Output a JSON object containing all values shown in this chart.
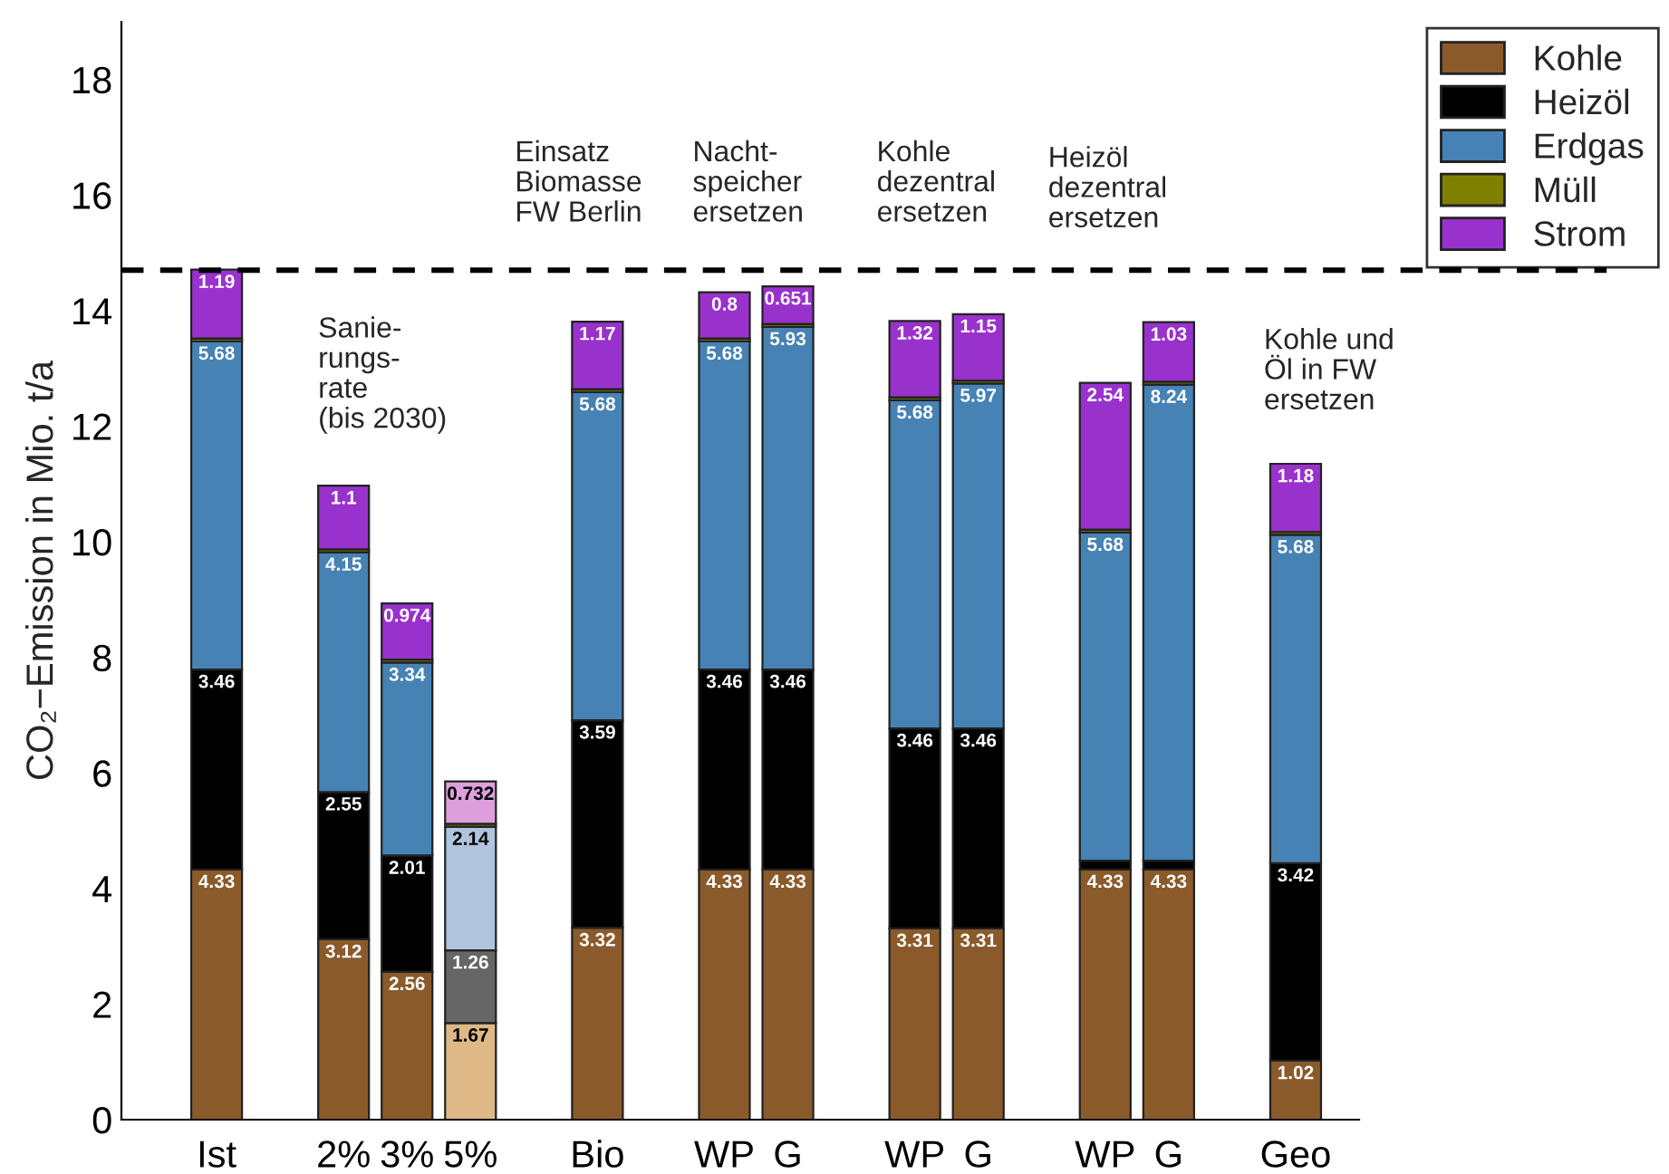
{
  "chart_data": {
    "type": "bar",
    "stacked": true,
    "ylabel": "CO₂−Emission in Mio. t/a",
    "categories": [
      "Ist",
      null,
      "2%",
      "3%",
      "5%",
      null,
      "Bio",
      null,
      "WP",
      "G",
      null,
      "WP",
      "G",
      null,
      "WP",
      "G",
      null,
      "Geo"
    ],
    "series": [
      {
        "name": "Kohle",
        "color": "#8b5a2b",
        "colors": [
          "#8b5a2b",
          null,
          "#8b5a2b",
          "#8b5a2b",
          "#deb887",
          null,
          "#8b5a2b",
          null,
          "#8b5a2b",
          "#8b5a2b",
          null,
          "#8b5a2b",
          "#8b5a2b",
          null,
          "#8b5a2b",
          "#8b5a2b",
          null,
          "#8b5a2b"
        ],
        "values": [
          4.33,
          null,
          3.12,
          2.56,
          1.67,
          null,
          3.32,
          null,
          4.33,
          4.33,
          null,
          3.31,
          3.31,
          null,
          4.33,
          4.33,
          null,
          1.02
        ],
        "value_labels": [
          "4.33",
          null,
          "3.12",
          "2.56",
          "1.67",
          null,
          "3.32",
          null,
          "4.33",
          "4.33",
          null,
          "3.31",
          "3.31",
          null,
          "4.33",
          "4.33",
          null,
          "1.02"
        ]
      },
      {
        "name": "Heizöl",
        "color": "#000000",
        "colors": [
          "#000000",
          null,
          "#000000",
          "#000000",
          "#666666",
          null,
          "#000000",
          null,
          "#000000",
          "#000000",
          null,
          "#000000",
          "#000000",
          null,
          "#000000",
          "#000000",
          null,
          "#000000"
        ],
        "values": [
          3.46,
          null,
          2.55,
          2.01,
          1.26,
          null,
          3.59,
          null,
          3.46,
          3.46,
          null,
          3.46,
          3.46,
          null,
          0.15,
          0.15,
          null,
          3.42
        ],
        "value_labels": [
          "3.46",
          null,
          "2.55",
          "2.01",
          "1.26",
          null,
          "3.59",
          null,
          "3.46",
          "3.46",
          null,
          "3.46",
          "3.46",
          null,
          null,
          null,
          null,
          "3.42"
        ]
      },
      {
        "name": "Erdgas",
        "color": "#4682b4",
        "colors": [
          "#4682b4",
          null,
          "#4682b4",
          "#4682b4",
          "#b0c4de",
          null,
          "#4682b4",
          null,
          "#4682b4",
          "#4682b4",
          null,
          "#4682b4",
          "#4682b4",
          null,
          "#4682b4",
          "#4682b4",
          null,
          "#4682b4"
        ],
        "values": [
          5.68,
          null,
          4.15,
          3.34,
          2.14,
          null,
          5.68,
          null,
          5.68,
          5.93,
          null,
          5.68,
          5.97,
          null,
          5.68,
          8.24,
          null,
          5.68
        ],
        "value_labels": [
          "5.68",
          null,
          "4.15",
          "3.34",
          "2.14",
          null,
          "5.68",
          null,
          "5.68",
          "5.93",
          null,
          "5.68",
          "5.97",
          null,
          "5.68",
          "8.24",
          null,
          "5.68"
        ]
      },
      {
        "name": "Müll",
        "color": "#808000",
        "values": [
          0.05,
          null,
          0.05,
          0.05,
          0.05,
          null,
          0.05,
          null,
          0.05,
          0.05,
          null,
          0.05,
          0.05,
          null,
          0.05,
          0.05,
          null,
          0.05
        ]
      },
      {
        "name": "Strom",
        "color": "#9932cc",
        "colors": [
          "#9932cc",
          null,
          "#9932cc",
          "#9932cc",
          "#dda0dd",
          null,
          "#9932cc",
          null,
          "#9932cc",
          "#9932cc",
          null,
          "#9932cc",
          "#9932cc",
          null,
          "#9932cc",
          "#9932cc",
          null,
          "#9932cc"
        ],
        "values": [
          1.19,
          null,
          1.1,
          0.974,
          0.732,
          null,
          1.17,
          null,
          0.8,
          0.651,
          null,
          1.32,
          1.15,
          null,
          2.54,
          1.03,
          null,
          1.18
        ],
        "value_labels": [
          "1.19",
          null,
          "1.1",
          "0.974",
          "0.732",
          null,
          "1.17",
          null,
          "0.8",
          "0.651",
          null,
          "1.32",
          "1.15",
          null,
          "2.54",
          "1.03",
          null,
          "1.18"
        ]
      }
    ],
    "ylim": [
      0,
      19
    ],
    "yticks": [
      0,
      2,
      4,
      6,
      8,
      10,
      12,
      14,
      16,
      18
    ],
    "ref_lines": [
      {
        "axis": "y",
        "value": 14.7,
        "color": "#000000",
        "line_style": "dashed"
      }
    ],
    "annotations": [
      "Sanie-\nrungs-\nrate\n(bis 2030)",
      "Einsatz\nBiomasse\nFW Berlin",
      "Nacht-\nspeicher\nersetzen",
      "Kohle\ndezentral\nersetzen",
      "Heizöl\ndezentral\nersetzen",
      "Kohle und\nÖl in FW\nersetzen"
    ],
    "legend": "top right",
    "grid": false
  }
}
